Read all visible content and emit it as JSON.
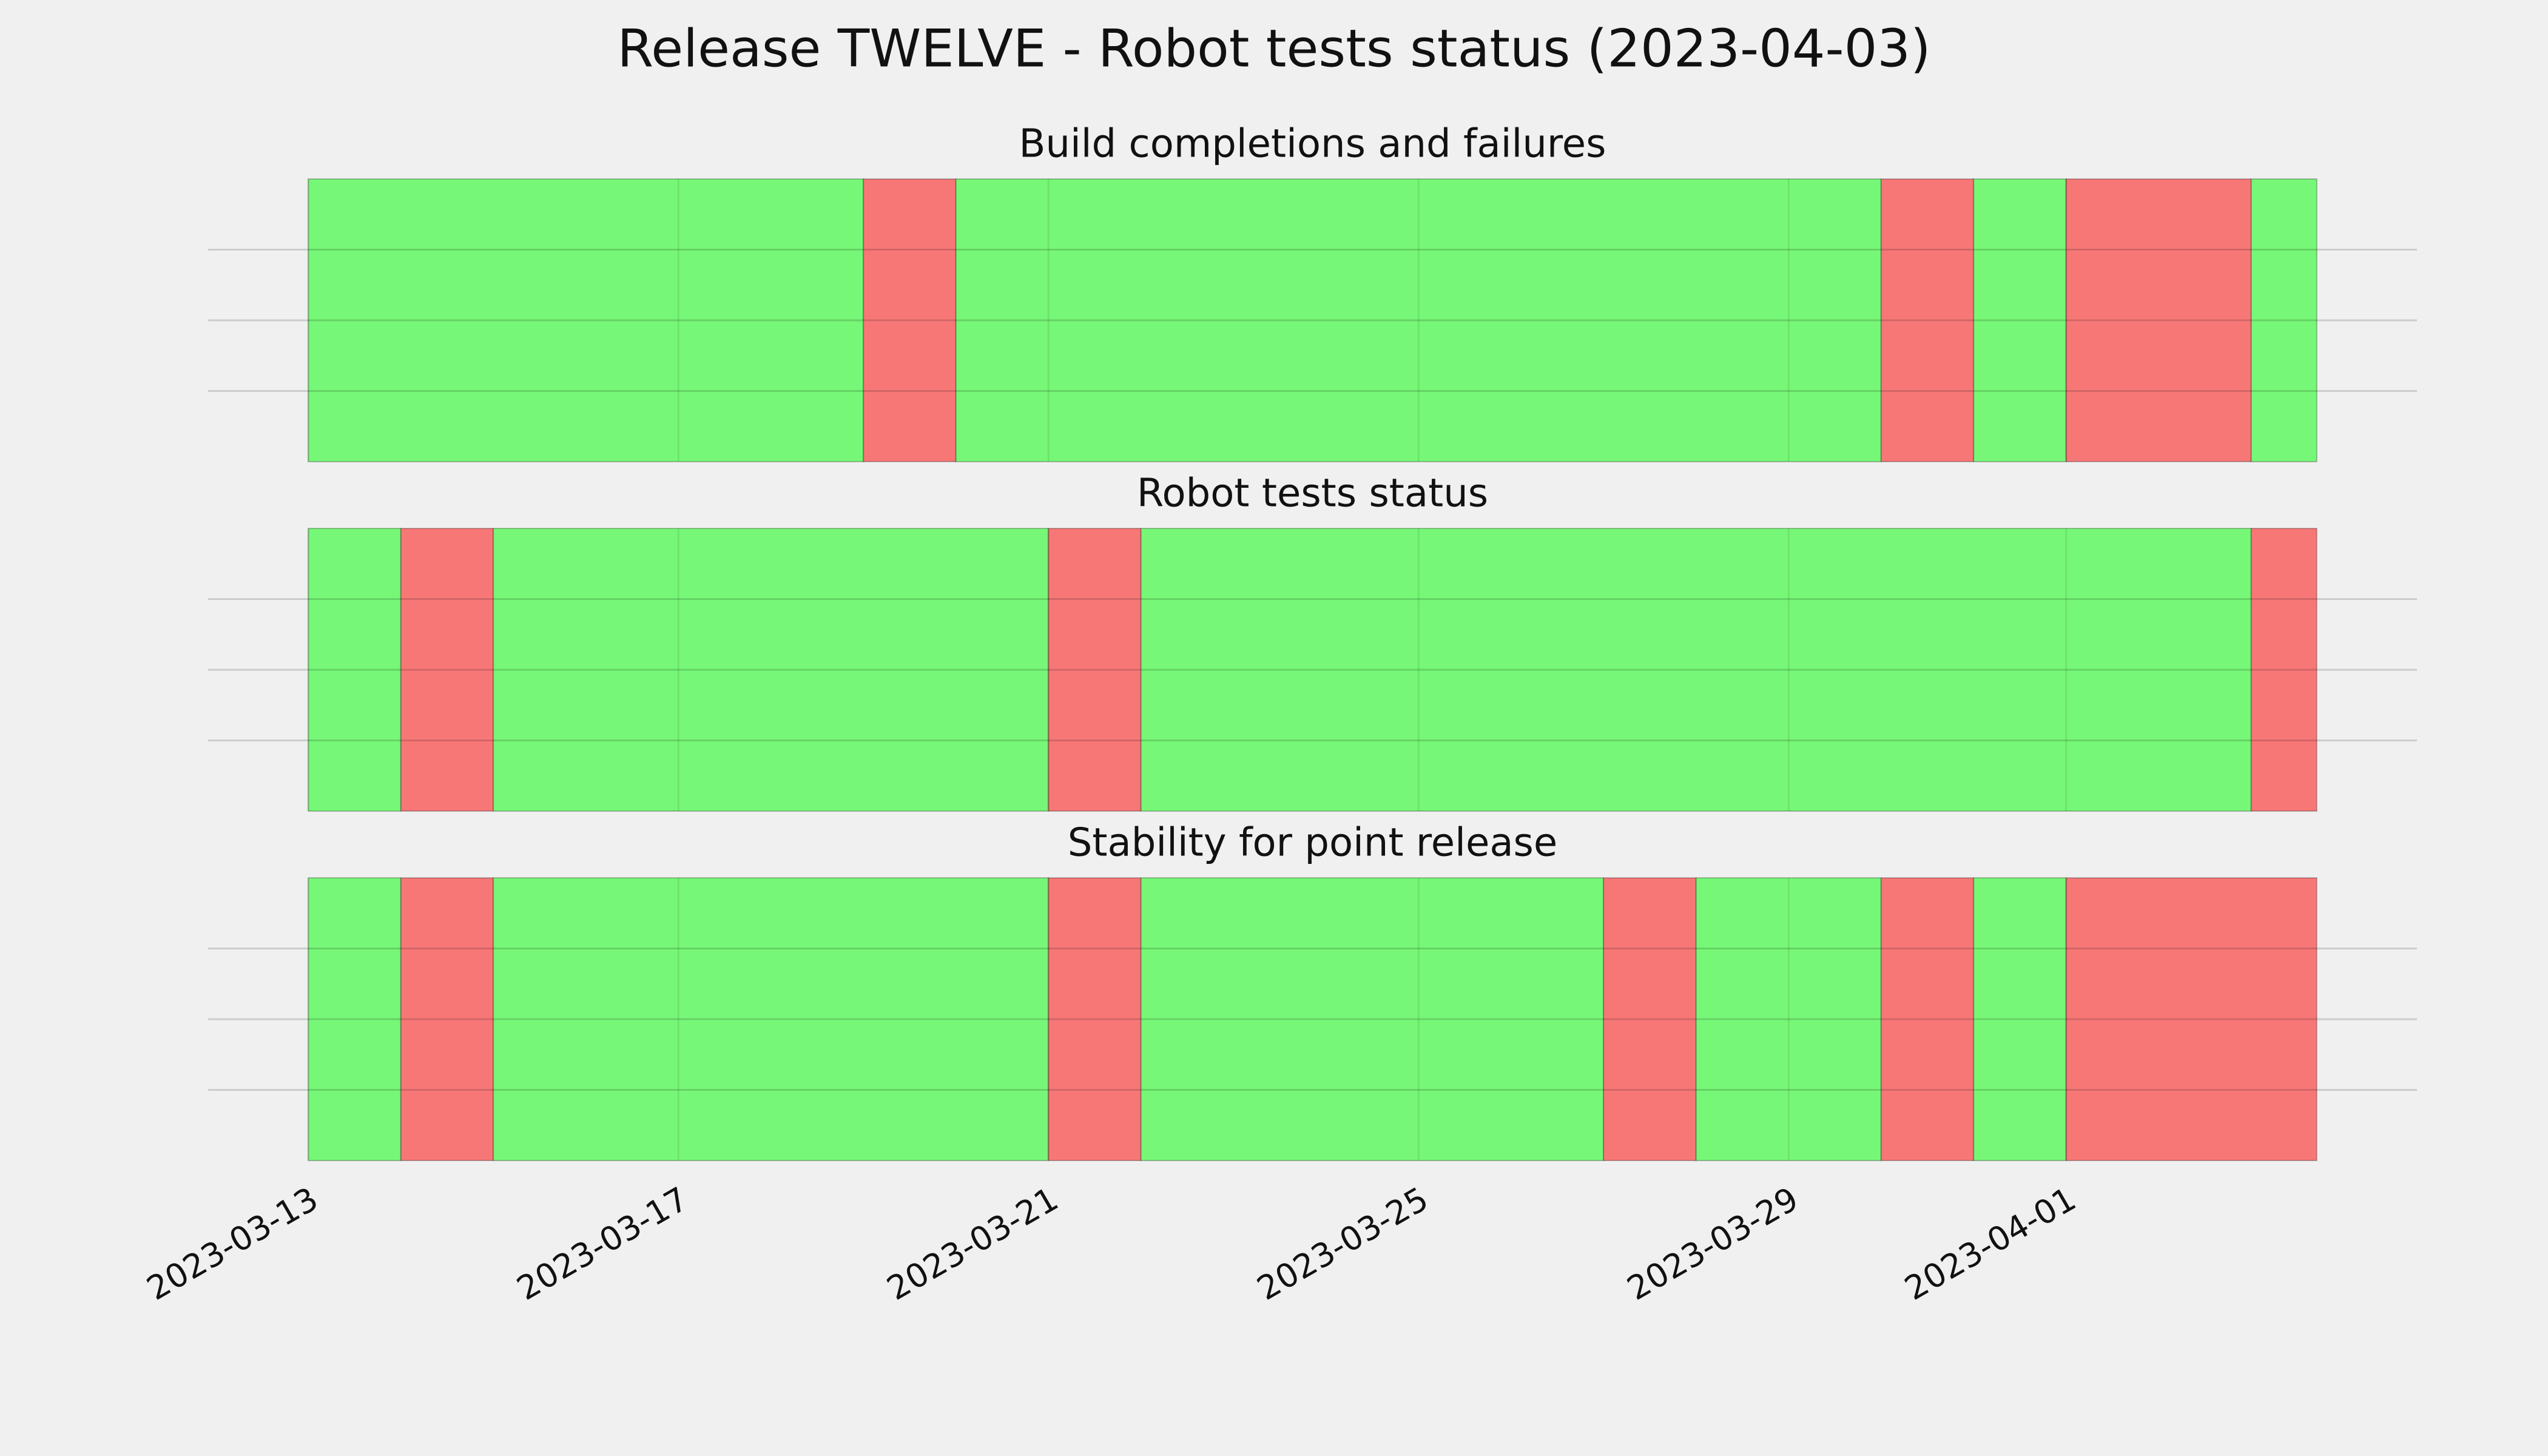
{
  "title": "Release TWELVE - Robot tests status (2023-04-03)",
  "chart_data": [
    {
      "type": "timeline",
      "title": "Build completions and failures",
      "xlim": [
        "2023-03-11T22:00",
        "2023-04-04T19:00"
      ],
      "ylim": [
        0,
        1
      ],
      "yticks": [
        0.25,
        0.5,
        0.75
      ],
      "grid": true,
      "xticks": [
        "2023-03-13",
        "2023-03-17",
        "2023-03-21",
        "2023-03-25",
        "2023-03-29",
        "2023-04-01"
      ],
      "spans": [
        {
          "start": "2023-03-13",
          "end": "2023-03-19",
          "color": "#77f777"
        },
        {
          "start": "2023-03-19",
          "end": "2023-03-20",
          "color": "#f77777"
        },
        {
          "start": "2023-03-20",
          "end": "2023-03-30",
          "color": "#77f777"
        },
        {
          "start": "2023-03-30",
          "end": "2023-03-31",
          "color": "#f77777"
        },
        {
          "start": "2023-03-31",
          "end": "2023-04-01",
          "color": "#77f777"
        },
        {
          "start": "2023-04-01",
          "end": "2023-04-03",
          "color": "#f77777"
        },
        {
          "start": "2023-04-03",
          "end": "2023-04-03T17:00",
          "color": "#77f777"
        }
      ]
    },
    {
      "type": "timeline",
      "title": "Robot tests status",
      "xlim": [
        "2023-03-11T22:00",
        "2023-04-04T19:00"
      ],
      "ylim": [
        0,
        1
      ],
      "yticks": [
        0.25,
        0.5,
        0.75
      ],
      "grid": true,
      "xticks": [
        "2023-03-13",
        "2023-03-17",
        "2023-03-21",
        "2023-03-25",
        "2023-03-29",
        "2023-04-01"
      ],
      "spans": [
        {
          "start": "2023-03-13",
          "end": "2023-03-14",
          "color": "#77f777"
        },
        {
          "start": "2023-03-14",
          "end": "2023-03-15",
          "color": "#f77777"
        },
        {
          "start": "2023-03-15",
          "end": "2023-03-21",
          "color": "#77f777"
        },
        {
          "start": "2023-03-21",
          "end": "2023-03-22",
          "color": "#f77777"
        },
        {
          "start": "2023-03-22",
          "end": "2023-04-03",
          "color": "#77f777"
        },
        {
          "start": "2023-04-03",
          "end": "2023-04-03T17:00",
          "color": "#f77777"
        }
      ]
    },
    {
      "type": "timeline",
      "title": "Stability for point release",
      "xlim": [
        "2023-03-11T22:00",
        "2023-04-04T19:00"
      ],
      "ylim": [
        0,
        1
      ],
      "yticks": [
        0.25,
        0.5,
        0.75
      ],
      "grid": true,
      "xticks": [
        "2023-03-13",
        "2023-03-17",
        "2023-03-21",
        "2023-03-25",
        "2023-03-29",
        "2023-04-01"
      ],
      "spans": [
        {
          "start": "2023-03-13",
          "end": "2023-03-14",
          "color": "#77f777"
        },
        {
          "start": "2023-03-14",
          "end": "2023-03-15",
          "color": "#f77777"
        },
        {
          "start": "2023-03-15",
          "end": "2023-03-21",
          "color": "#77f777"
        },
        {
          "start": "2023-03-21",
          "end": "2023-03-22",
          "color": "#f77777"
        },
        {
          "start": "2023-03-22",
          "end": "2023-03-27",
          "color": "#77f777"
        },
        {
          "start": "2023-03-27",
          "end": "2023-03-28",
          "color": "#f77777"
        },
        {
          "start": "2023-03-28",
          "end": "2023-03-30",
          "color": "#77f777"
        },
        {
          "start": "2023-03-30",
          "end": "2023-03-31",
          "color": "#f77777"
        },
        {
          "start": "2023-03-31",
          "end": "2023-04-01",
          "color": "#77f777"
        },
        {
          "start": "2023-04-01",
          "end": "2023-04-03T17:00",
          "color": "#f77777"
        }
      ]
    }
  ]
}
